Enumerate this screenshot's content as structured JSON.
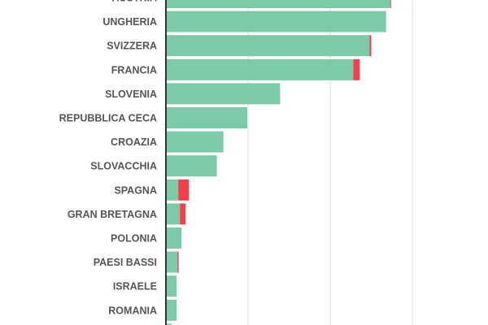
{
  "chart_data": {
    "type": "bar",
    "orientation": "horizontal",
    "stacked": true,
    "title": "",
    "xlabel": "",
    "ylabel": "",
    "xlim": [
      0,
      3.9
    ],
    "grid": true,
    "gridlines_at": [
      1,
      2,
      3
    ],
    "colors": {
      "series_0": "#7ccaa7",
      "series_1": "#f0404c",
      "axis": "#333333",
      "grid": "#dddddd",
      "label": "#555555"
    },
    "categories": [
      "AUSTRIA",
      "UNGHERIA",
      "SVIZZERA",
      "FRANCIA",
      "SLOVENIA",
      "REPUBBLICA CECA",
      "CROAZIA",
      "SLOVACCHIA",
      "SPAGNA",
      "GRAN BRETAGNA",
      "POLONIA",
      "PAESI BASSI",
      "ISRAELE",
      "ROMANIA",
      ""
    ],
    "series": [
      {
        "values": [
          2.73,
          2.68,
          2.48,
          2.28,
          1.39,
          0.99,
          0.7,
          0.62,
          0.15,
          0.17,
          0.19,
          0.14,
          0.13,
          0.13,
          0.07
        ]
      },
      {
        "values": [
          0.01,
          0,
          0.02,
          0.08,
          0,
          0,
          0,
          0,
          0.13,
          0.07,
          0,
          0.015,
          0,
          0,
          0
        ]
      }
    ]
  }
}
